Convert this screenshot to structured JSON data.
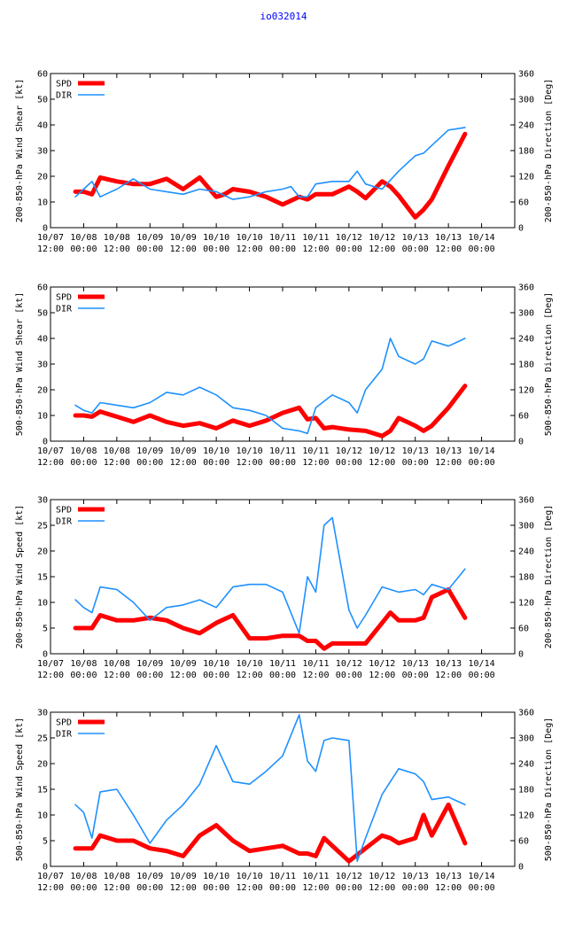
{
  "page_title": "io032014",
  "colors": {
    "spd": "#ff0000",
    "dir": "#1e90ff",
    "axis": "#000000",
    "title": "#0000ff"
  },
  "x_ticks": [
    {
      "t": 0,
      "l1": "10/07",
      "l2": "12:00"
    },
    {
      "t": 1,
      "l1": "10/08",
      "l2": "00:00"
    },
    {
      "t": 2,
      "l1": "10/08",
      "l2": "12:00"
    },
    {
      "t": 3,
      "l1": "10/09",
      "l2": "00:00"
    },
    {
      "t": 4,
      "l1": "10/09",
      "l2": "12:00"
    },
    {
      "t": 5,
      "l1": "10/10",
      "l2": "00:00"
    },
    {
      "t": 6,
      "l1": "10/10",
      "l2": "12:00"
    },
    {
      "t": 7,
      "l1": "10/11",
      "l2": "00:00"
    },
    {
      "t": 8,
      "l1": "10/11",
      "l2": "12:00"
    },
    {
      "t": 9,
      "l1": "10/12",
      "l2": "00:00"
    },
    {
      "t": 10,
      "l1": "10/12",
      "l2": "12:00"
    },
    {
      "t": 11,
      "l1": "10/13",
      "l2": "00:00"
    },
    {
      "t": 12,
      "l1": "10/13",
      "l2": "12:00"
    },
    {
      "t": 13,
      "l1": "10/14",
      "l2": "00:00"
    }
  ],
  "chart_data": [
    {
      "type": "line",
      "ylabel": "200-850-hPa Wind Shear [kt]",
      "y2label": "200-850-hPa Direction [Deg]",
      "ylim": [
        0,
        60
      ],
      "yticks": [
        0,
        10,
        20,
        30,
        40,
        50,
        60
      ],
      "y2lim": [
        0,
        360
      ],
      "y2ticks": [
        0,
        60,
        120,
        180,
        240,
        300,
        360
      ],
      "xlim": [
        0,
        14
      ],
      "legend": [
        "SPD",
        "DIR"
      ],
      "series": [
        {
          "name": "SPD",
          "axis": "left",
          "x": [
            0.75,
            1.0,
            1.25,
            1.5,
            2.0,
            2.5,
            3.0,
            3.5,
            4.0,
            4.5,
            5.0,
            5.25,
            5.5,
            6.0,
            6.5,
            7.0,
            7.5,
            7.75,
            8.0,
            8.25,
            8.5,
            9.0,
            9.25,
            9.5,
            10.0,
            10.25,
            10.5,
            11.0,
            11.25,
            11.5,
            12.0,
            12.5
          ],
          "values": [
            14,
            14,
            13,
            19.5,
            18,
            17,
            17,
            19,
            15,
            19.5,
            12,
            13,
            15,
            14,
            12,
            9,
            12,
            11,
            13,
            13,
            13,
            16,
            14,
            11.5,
            18,
            16,
            12.5,
            4,
            7,
            11,
            24,
            36.5
          ]
        },
        {
          "name": "DIR",
          "axis": "right",
          "x": [
            0.75,
            1.0,
            1.25,
            1.5,
            2.0,
            2.5,
            3.0,
            3.5,
            4.0,
            4.5,
            5.0,
            5.5,
            6.0,
            6.5,
            7.0,
            7.25,
            7.5,
            7.75,
            8.0,
            8.5,
            9.0,
            9.25,
            9.5,
            10.0,
            10.5,
            11.0,
            11.25,
            11.5,
            12.0,
            12.5
          ],
          "values": [
            72,
            90,
            108,
            72,
            90,
            114,
            90,
            84,
            78,
            90,
            84,
            66,
            72,
            84,
            90,
            96,
            72,
            72,
            102,
            108,
            108,
            132,
            102,
            90,
            132,
            168,
            174,
            192,
            228,
            234
          ]
        }
      ]
    },
    {
      "type": "line",
      "ylabel": "500-850-hPa Wind Shear [kt]",
      "y2label": "500-850-hPa Direction [Deg]",
      "ylim": [
        0,
        60
      ],
      "yticks": [
        0,
        10,
        20,
        30,
        40,
        50,
        60
      ],
      "y2lim": [
        0,
        360
      ],
      "y2ticks": [
        0,
        60,
        120,
        180,
        240,
        300,
        360
      ],
      "xlim": [
        0,
        14
      ],
      "legend": [
        "SPD",
        "DIR"
      ],
      "series": [
        {
          "name": "SPD",
          "axis": "left",
          "x": [
            0.75,
            1.0,
            1.25,
            1.5,
            2.0,
            2.5,
            3.0,
            3.5,
            4.0,
            4.5,
            5.0,
            5.5,
            6.0,
            6.5,
            7.0,
            7.5,
            7.75,
            8.0,
            8.25,
            8.5,
            9.0,
            9.5,
            10.0,
            10.25,
            10.5,
            11.0,
            11.25,
            11.5,
            12.0,
            12.5
          ],
          "values": [
            10,
            10,
            9.5,
            11.5,
            9.5,
            7.5,
            10,
            7.5,
            6,
            7,
            5,
            8,
            6,
            8,
            11,
            13,
            8.5,
            9,
            5,
            5.5,
            4.5,
            4,
            2,
            4,
            9,
            6,
            4,
            6,
            13,
            21.5
          ]
        },
        {
          "name": "DIR",
          "axis": "right",
          "x": [
            0.75,
            1.0,
            1.25,
            1.5,
            2.0,
            2.5,
            3.0,
            3.5,
            4.0,
            4.5,
            5.0,
            5.5,
            6.0,
            6.5,
            7.0,
            7.5,
            7.75,
            8.0,
            8.5,
            9.0,
            9.25,
            9.5,
            10.0,
            10.25,
            10.5,
            11.0,
            11.25,
            11.5,
            12.0,
            12.5
          ],
          "values": [
            84,
            72,
            66,
            90,
            84,
            78,
            90,
            114,
            108,
            126,
            108,
            78,
            72,
            60,
            30,
            24,
            18,
            78,
            108,
            90,
            66,
            120,
            168,
            240,
            198,
            180,
            192,
            234,
            222,
            240
          ]
        }
      ]
    },
    {
      "type": "line",
      "ylabel": "200-850-hPa Wind Speed [kt]",
      "y2label": "200-850-hPa Direction [Deg]",
      "ylim": [
        0,
        30
      ],
      "yticks": [
        0,
        5,
        10,
        15,
        20,
        25,
        30
      ],
      "y2lim": [
        0,
        360
      ],
      "y2ticks": [
        0,
        60,
        120,
        180,
        240,
        300,
        360
      ],
      "xlim": [
        0,
        14
      ],
      "legend": [
        "SPD",
        "DIR"
      ],
      "series": [
        {
          "name": "SPD",
          "axis": "left",
          "x": [
            0.75,
            1.0,
            1.25,
            1.5,
            2.0,
            2.5,
            3.0,
            3.5,
            4.0,
            4.5,
            5.0,
            5.5,
            6.0,
            6.5,
            7.0,
            7.5,
            7.75,
            8.0,
            8.25,
            8.5,
            9.0,
            9.5,
            10.0,
            10.25,
            10.5,
            11.0,
            11.25,
            11.5,
            12.0,
            12.5
          ],
          "values": [
            5,
            5,
            5,
            7.5,
            6.5,
            6.5,
            7,
            6.5,
            5,
            4,
            6,
            7.5,
            3,
            3,
            3.5,
            3.5,
            2.5,
            2.5,
            1,
            2,
            2,
            2,
            6,
            8,
            6.5,
            6.5,
            7,
            11,
            12.5,
            7
          ]
        },
        {
          "name": "DIR",
          "axis": "right",
          "x": [
            0.75,
            1.0,
            1.25,
            1.5,
            2.0,
            2.5,
            3.0,
            3.5,
            4.0,
            4.5,
            5.0,
            5.5,
            6.0,
            6.5,
            7.0,
            7.5,
            7.75,
            8.0,
            8.25,
            8.5,
            9.0,
            9.25,
            9.5,
            10.0,
            10.5,
            11.0,
            11.25,
            11.5,
            12.0,
            12.5
          ],
          "values": [
            126,
            108,
            96,
            156,
            150,
            120,
            78,
            108,
            114,
            126,
            108,
            156,
            162,
            162,
            144,
            48,
            180,
            144,
            300,
            318,
            102,
            60,
            90,
            156,
            144,
            150,
            138,
            162,
            150,
            198
          ]
        }
      ]
    },
    {
      "type": "line",
      "ylabel": "500-850-hPa Wind Speed [kt]",
      "y2label": "500-850-hPa Direction [Deg]",
      "ylim": [
        0,
        30
      ],
      "yticks": [
        0,
        5,
        10,
        15,
        20,
        25,
        30
      ],
      "y2lim": [
        0,
        360
      ],
      "y2ticks": [
        0,
        60,
        120,
        180,
        240,
        300,
        360
      ],
      "xlim": [
        0,
        14
      ],
      "legend": [
        "SPD",
        "DIR"
      ],
      "series": [
        {
          "name": "SPD",
          "axis": "left",
          "x": [
            0.75,
            1.0,
            1.25,
            1.5,
            2.0,
            2.5,
            3.0,
            3.5,
            4.0,
            4.5,
            5.0,
            5.5,
            6.0,
            6.5,
            7.0,
            7.5,
            7.75,
            8.0,
            8.25,
            8.5,
            9.0,
            9.5,
            10.0,
            10.25,
            10.5,
            11.0,
            11.25,
            11.5,
            12.0,
            12.5
          ],
          "values": [
            3.5,
            3.5,
            3.5,
            6,
            5,
            5,
            3.5,
            3,
            2,
            6,
            8,
            5,
            3,
            3.5,
            4,
            2.5,
            2.5,
            2,
            5.5,
            4,
            1,
            3.5,
            6,
            5.5,
            4.5,
            5.5,
            10,
            6,
            12,
            4.5
          ]
        },
        {
          "name": "DIR",
          "axis": "right",
          "x": [
            0.75,
            1.0,
            1.25,
            1.5,
            2.0,
            2.5,
            3.0,
            3.5,
            4.0,
            4.5,
            5.0,
            5.5,
            6.0,
            6.5,
            7.0,
            7.5,
            7.75,
            8.0,
            8.25,
            8.5,
            9.0,
            9.25,
            9.5,
            10.0,
            10.5,
            11.0,
            11.25,
            11.5,
            12.0,
            12.5
          ],
          "values": [
            144,
            126,
            66,
            174,
            180,
            120,
            54,
            108,
            144,
            192,
            282,
            198,
            192,
            222,
            258,
            354,
            246,
            222,
            294,
            300,
            294,
            12,
            66,
            168,
            228,
            216,
            198,
            156,
            162,
            144
          ]
        }
      ]
    }
  ]
}
